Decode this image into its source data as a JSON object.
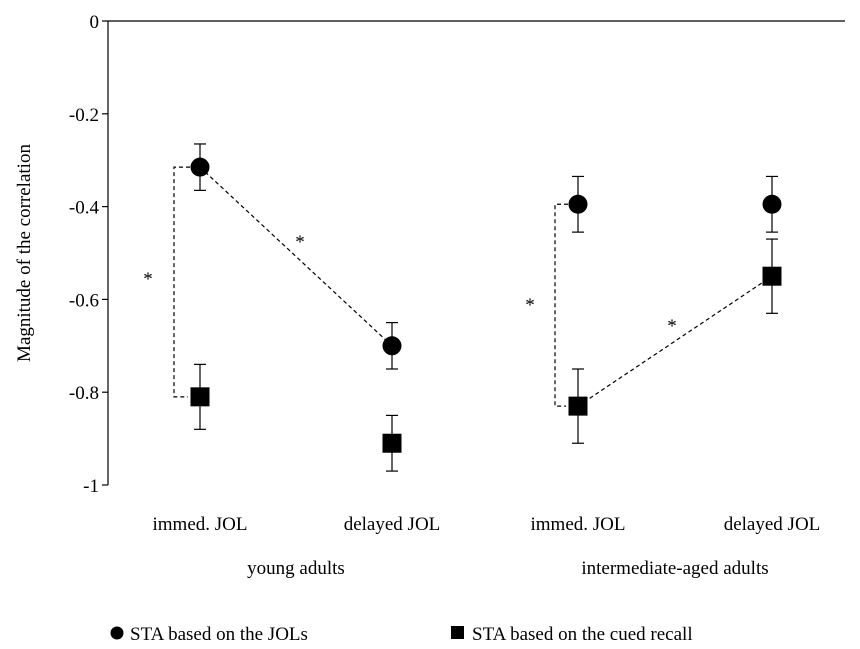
{
  "chart_data": {
    "type": "scatter",
    "title": "",
    "xlabel": "",
    "ylabel": "Magnitude of the correlation",
    "ylim": [
      -1,
      0
    ],
    "yticks": [
      "0",
      "-0.2",
      "-0.4",
      "-0.6",
      "-0.8",
      "-1"
    ],
    "grid": false,
    "groups": [
      {
        "label": "young adults",
        "conditions": [
          "immed. JOL",
          "delayed JOL"
        ]
      },
      {
        "label": "intermediate-aged adults",
        "conditions": [
          "immed. JOL",
          "delayed JOL"
        ]
      }
    ],
    "series": [
      {
        "name": "STA based on the JOLs",
        "marker": "circle",
        "values": [
          -0.315,
          -0.7,
          -0.395,
          -0.395
        ],
        "error": [
          0.05,
          0.05,
          0.06,
          0.06
        ]
      },
      {
        "name": "STA based on the cued recall",
        "marker": "square",
        "values": [
          -0.81,
          -0.91,
          -0.83,
          -0.55
        ],
        "error": [
          0.07,
          0.06,
          0.08,
          0.08
        ]
      }
    ],
    "annotations": [
      "*",
      "*",
      "*",
      "*"
    ],
    "legend_position": "bottom"
  }
}
